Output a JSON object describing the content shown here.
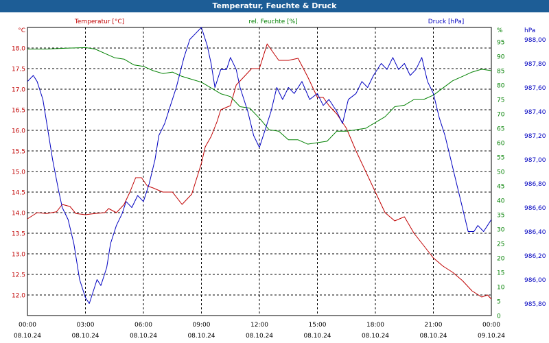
{
  "window": {
    "title": "Temperatur, Feuchte & Druck"
  },
  "chart_data": {
    "type": "line",
    "title": "Temperatur, Feuchte & Druck",
    "grid": true,
    "x_ticks": [
      {
        "hm": "00:00",
        "date": "08.10.24"
      },
      {
        "hm": "03:00",
        "date": "08.10.24"
      },
      {
        "hm": "06:00",
        "date": "08.10.24"
      },
      {
        "hm": "09:00",
        "date": "08.10.24"
      },
      {
        "hm": "12:00",
        "date": "08.10.24"
      },
      {
        "hm": "15:00",
        "date": "08.10.24"
      },
      {
        "hm": "18:00",
        "date": "08.10.24"
      },
      {
        "hm": "21:00",
        "date": "08.10.24"
      },
      {
        "hm": "00:00",
        "date": "09.10.24"
      }
    ],
    "x_range_hours": [
      0,
      24
    ],
    "axes": {
      "temperature": {
        "label": "Temperatur [°C]",
        "unit": "°C",
        "color": "#c00000",
        "range": [
          11.5,
          18.5
        ],
        "ticks": [
          "18.0",
          "17.5",
          "17.0",
          "16.5",
          "16.0",
          "15.5",
          "15.0",
          "14.5",
          "14.0",
          "13.5",
          "13.0",
          "12.5",
          "12.0"
        ]
      },
      "humidity": {
        "label": "rel. Feuchte [%]",
        "unit": "%",
        "color": "#008000",
        "range": [
          0,
          100
        ],
        "ticks": [
          "0",
          "5",
          "10",
          "15",
          "20",
          "25",
          "30",
          "35",
          "40",
          "45",
          "50",
          "55",
          "60",
          "65",
          "70",
          "75",
          "80",
          "85",
          "90",
          "95",
          "%"
        ]
      },
      "pressure": {
        "label": "Druck [hPa]",
        "unit": "hPa",
        "color": "#0000c0",
        "range": [
          985.7,
          988.1
        ],
        "ticks": [
          "985,80",
          "986,00",
          "986,20",
          "986,40",
          "986,60",
          "986,80",
          "987,00",
          "987,20",
          "987,40",
          "987,60",
          "987,80",
          "988,00",
          "hPa"
        ]
      }
    },
    "series": [
      {
        "name": "Temperatur [°C]",
        "axis": "temperature",
        "color": "#c00000",
        "x": [
          0,
          0.5,
          1,
          1.5,
          1.8,
          2.2,
          2.5,
          3,
          3.5,
          4,
          4.2,
          4.6,
          5,
          5.3,
          5.6,
          5.9,
          6.2,
          6.5,
          7,
          7.5,
          8,
          8.5,
          9,
          9.2,
          9.5,
          9.8,
          10,
          10.5,
          10.8,
          11.2,
          11.6,
          12,
          12.4,
          12.7,
          13,
          13.5,
          14,
          14.5,
          15,
          15.3,
          15.6,
          16,
          16.5,
          17,
          17.5,
          18,
          18.5,
          19,
          19.5,
          20,
          20.5,
          21,
          21.5,
          22,
          22.5,
          23,
          23.5,
          23.8,
          24
        ],
        "y": [
          13.85,
          14.0,
          13.98,
          14.02,
          14.2,
          14.15,
          13.98,
          13.95,
          13.98,
          14.0,
          14.1,
          14.0,
          14.2,
          14.5,
          14.85,
          14.85,
          14.65,
          14.6,
          14.5,
          14.5,
          14.2,
          14.45,
          15.2,
          15.6,
          15.85,
          16.2,
          16.5,
          16.6,
          17.1,
          17.3,
          17.5,
          17.5,
          18.1,
          17.9,
          17.7,
          17.7,
          17.75,
          17.3,
          16.8,
          16.8,
          16.6,
          16.4,
          16.05,
          15.5,
          15.0,
          14.5,
          14.0,
          13.8,
          13.9,
          13.5,
          13.2,
          12.9,
          12.7,
          12.55,
          12.35,
          12.1,
          11.95,
          12.0,
          11.9
        ]
      },
      {
        "name": "rel. Feuchte [%]",
        "axis": "humidity",
        "color": "#008000",
        "x": [
          0,
          1,
          2,
          3,
          3.5,
          4,
          4.5,
          5,
          5.5,
          6,
          6.5,
          7,
          7.5,
          8,
          8.5,
          9,
          9.5,
          10,
          10.5,
          11,
          11.5,
          12,
          12.5,
          13,
          13.5,
          14,
          14.5,
          15,
          15.5,
          16,
          16.5,
          17,
          17.5,
          18,
          18.5,
          19,
          19.5,
          20,
          20.5,
          21,
          21.5,
          22,
          22.5,
          23,
          23.5,
          24
        ],
        "y": [
          92.5,
          92.5,
          92.8,
          93,
          92.5,
          91,
          89.5,
          89,
          87,
          86.5,
          85,
          84,
          84.5,
          83,
          82,
          81,
          79,
          77,
          76,
          72.5,
          72,
          68.5,
          64.5,
          64,
          61,
          61,
          59.5,
          60,
          60.5,
          64,
          64,
          64.5,
          65,
          67,
          69,
          72.5,
          73,
          75,
          75,
          76.5,
          79,
          81.5,
          83,
          84.5,
          85.5,
          85
        ]
      },
      {
        "name": "Druck [hPa]",
        "axis": "pressure",
        "color": "#0000c0",
        "x": [
          0,
          0.3,
          0.5,
          0.8,
          1,
          1.3,
          1.6,
          1.8,
          2.1,
          2.4,
          2.7,
          3,
          3.2,
          3.4,
          3.6,
          3.8,
          4.1,
          4.3,
          4.6,
          4.9,
          5.1,
          5.4,
          5.7,
          6,
          6.3,
          6.6,
          6.8,
          7.1,
          7.4,
          7.7,
          8.1,
          8.4,
          8.7,
          9,
          9.3,
          9.5,
          9.7,
          10,
          10.3,
          10.5,
          10.8,
          11,
          11.4,
          11.7,
          12,
          12.3,
          12.6,
          12.9,
          13.2,
          13.5,
          13.8,
          14.2,
          14.6,
          15,
          15.3,
          15.6,
          16,
          16.3,
          16.6,
          17,
          17.3,
          17.6,
          17.9,
          18.3,
          18.6,
          18.9,
          19.2,
          19.5,
          19.8,
          20.1,
          20.4,
          20.7,
          21,
          21.3,
          21.6,
          21.9,
          22.2,
          22.5,
          22.8,
          23.1,
          23.3,
          23.6,
          23.8,
          24
        ],
        "y": [
          987.65,
          987.7,
          987.65,
          987.5,
          987.3,
          987.0,
          986.75,
          986.6,
          986.5,
          986.3,
          986.0,
          985.85,
          985.8,
          985.9,
          986.0,
          985.95,
          986.1,
          986.3,
          986.45,
          986.55,
          986.65,
          986.6,
          986.7,
          986.65,
          986.8,
          987.0,
          987.2,
          987.3,
          987.45,
          987.6,
          987.85,
          988.0,
          988.05,
          988.1,
          987.95,
          987.8,
          987.6,
          987.75,
          987.75,
          987.85,
          987.75,
          987.6,
          987.4,
          987.2,
          987.1,
          987.25,
          987.4,
          987.6,
          987.5,
          987.6,
          987.55,
          987.65,
          987.5,
          987.55,
          987.45,
          987.5,
          987.4,
          987.3,
          987.5,
          987.55,
          987.65,
          987.6,
          987.7,
          987.8,
          987.75,
          987.85,
          987.75,
          987.8,
          987.7,
          987.75,
          987.85,
          987.65,
          987.55,
          987.35,
          987.2,
          987.0,
          986.8,
          986.6,
          986.4,
          986.4,
          986.45,
          986.4,
          986.45,
          986.5
        ]
      }
    ]
  }
}
